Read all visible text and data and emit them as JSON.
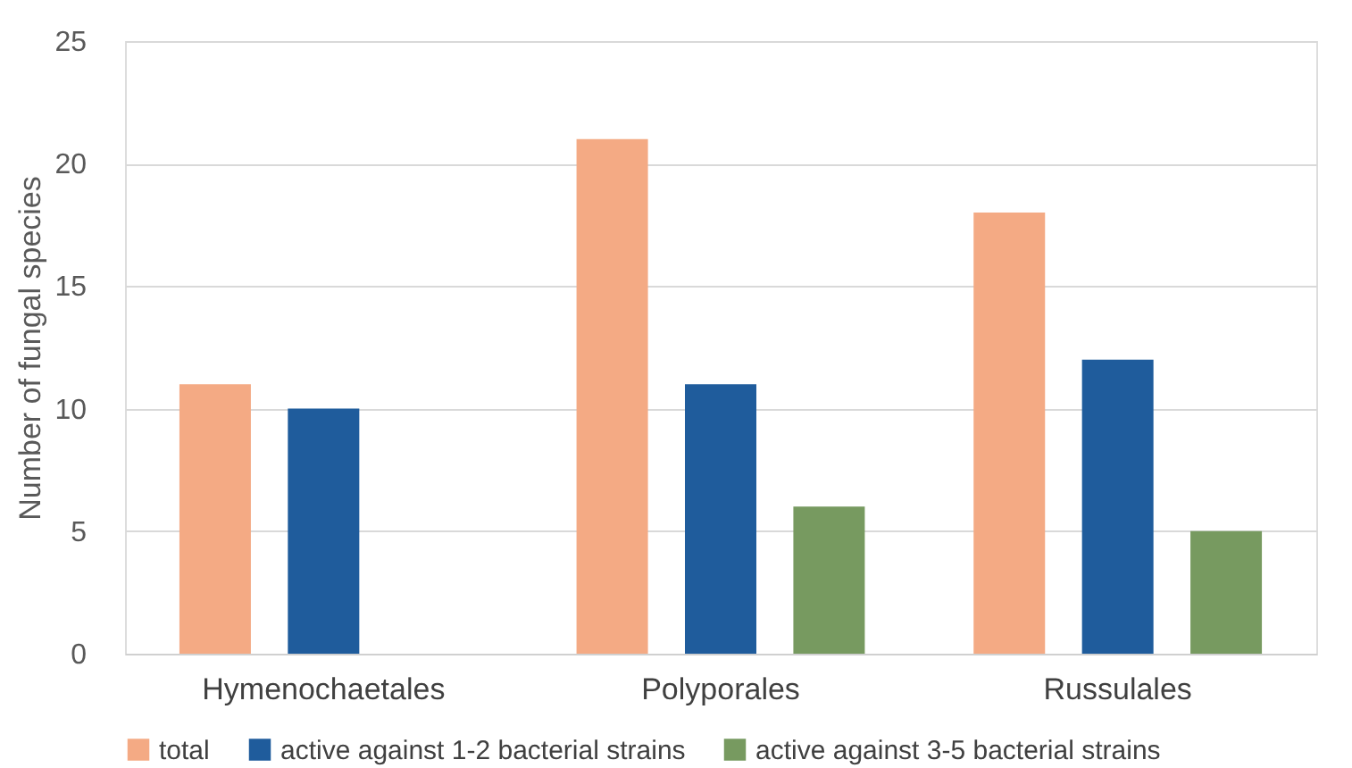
{
  "chart_data": {
    "type": "bar",
    "ylabel": "Number of fungal species",
    "categories": [
      "Hymenochaetales",
      "Polyporales",
      "Russulales"
    ],
    "series": [
      {
        "name": "total",
        "color": "#f4aa84",
        "values": [
          11,
          21,
          18
        ]
      },
      {
        "name": "active against 1-2 bacterial strains",
        "color": "#1f5c9c",
        "values": [
          10,
          11,
          12
        ]
      },
      {
        "name": "active against 3-5 bacterial strains",
        "color": "#779a60",
        "values": [
          null,
          6,
          5
        ]
      }
    ],
    "ylim": [
      0,
      25
    ],
    "yticks": [
      0,
      5,
      10,
      15,
      20,
      25
    ],
    "grid": "y",
    "legend": "bottom"
  }
}
